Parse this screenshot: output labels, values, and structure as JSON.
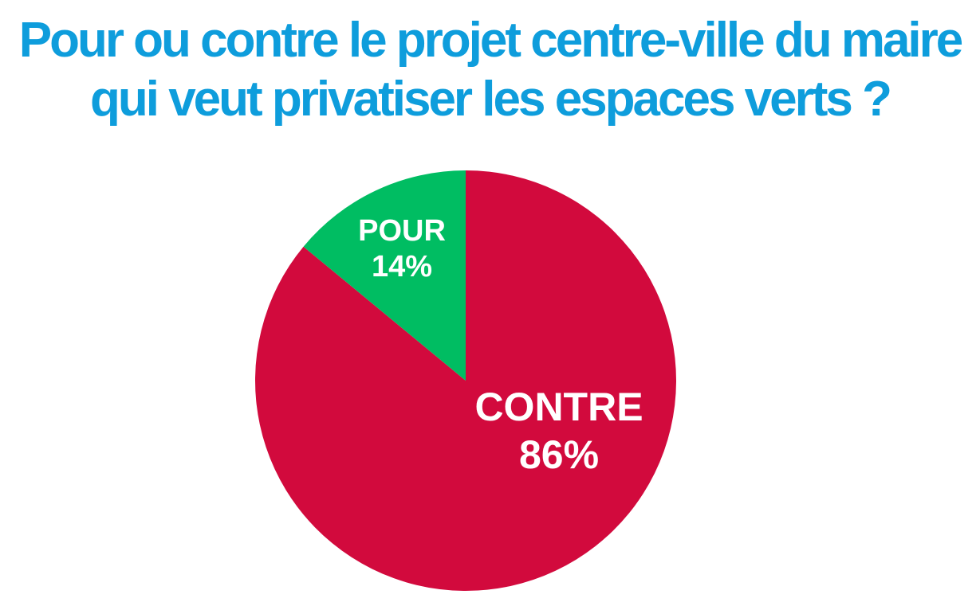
{
  "title_lines": [
    "Pour ou contre le projet centre-ville du maire",
    "qui veut privatiser les espaces verts ?"
  ],
  "colors": {
    "title": "#0e9ddc",
    "pour": "#00bd62",
    "contre": "#d20a3d",
    "label": "#ffffff"
  },
  "chart_data": {
    "type": "pie",
    "title": "Pour ou contre le projet centre-ville du maire qui veut privatiser les espaces verts ?",
    "slices": [
      {
        "label": "CONTRE",
        "value": 86,
        "value_label": "86%",
        "color": "#d20a3d"
      },
      {
        "label": "POUR",
        "value": 14,
        "value_label": "14%",
        "color": "#00bd62"
      }
    ]
  }
}
